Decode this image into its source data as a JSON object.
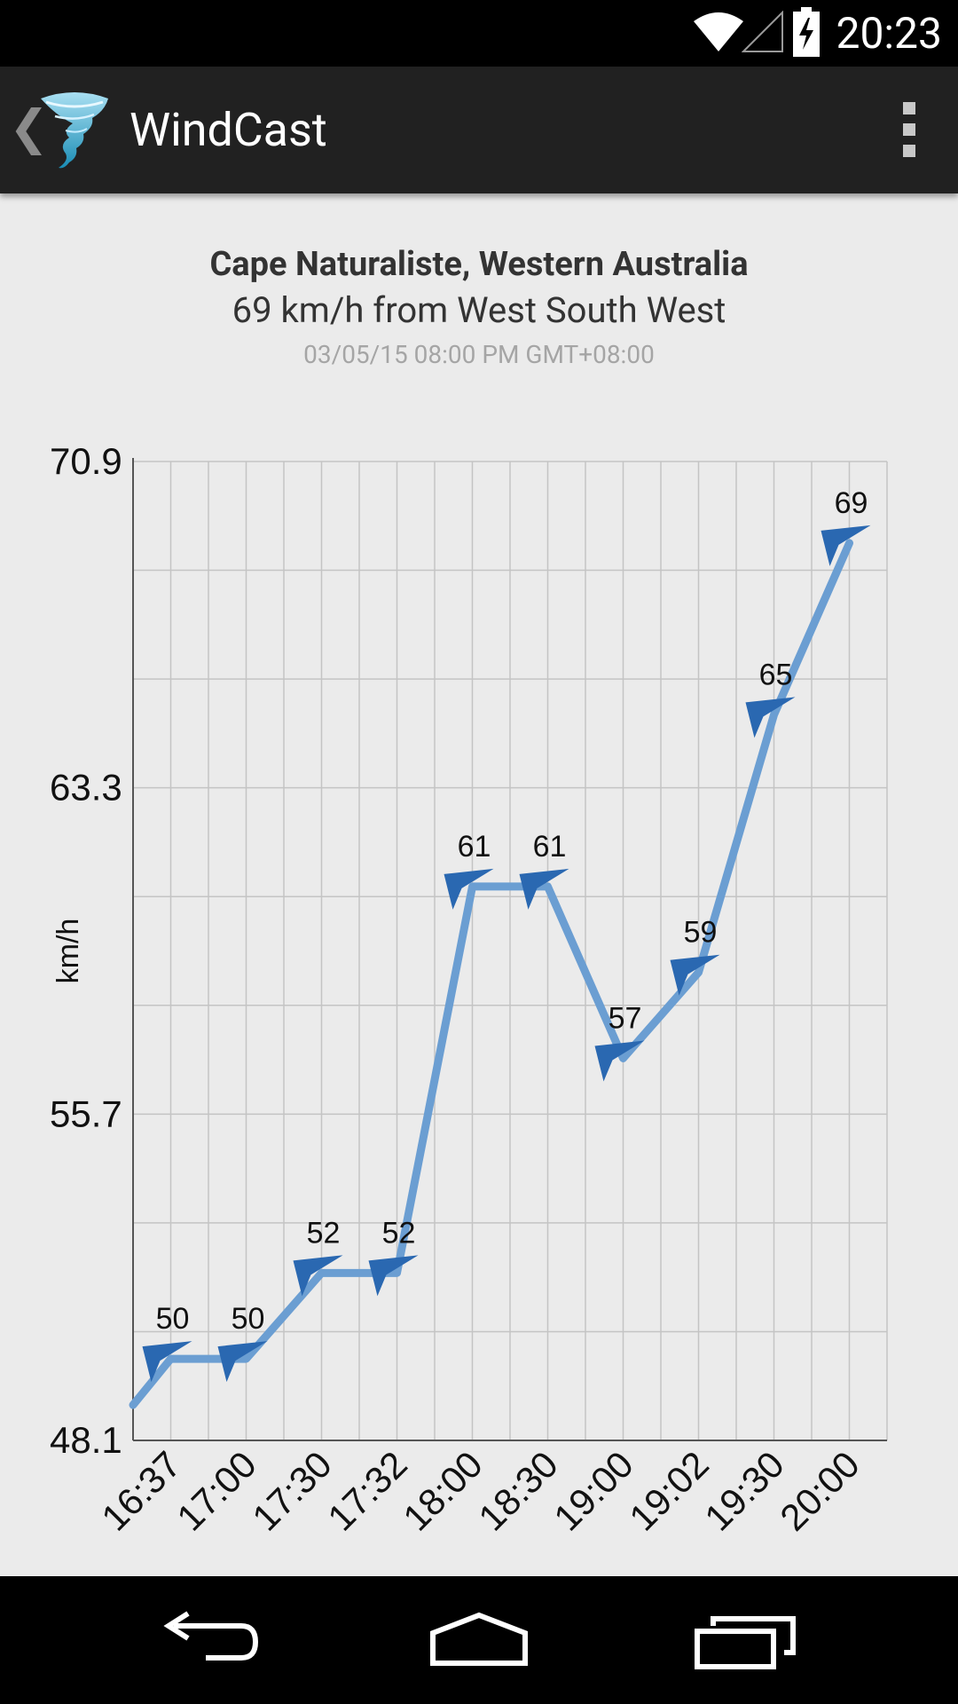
{
  "status_bar": {
    "time": "20:23",
    "icons": [
      "wifi-icon",
      "cell-signal-icon",
      "battery-charging-icon"
    ]
  },
  "action_bar": {
    "back_icon": "back-chevron-icon",
    "logo_icon": "tornado-logo-icon",
    "title": "WindCast",
    "overflow_icon": "overflow-menu-icon"
  },
  "header": {
    "location": "Cape Naturaliste, Western Australia",
    "speed_text": "69 km/h from West South West",
    "datetime": "03/05/15 08:00 PM GMT+08:00"
  },
  "chart_data": {
    "type": "line",
    "title": "",
    "xlabel": "",
    "ylabel": "km/h",
    "ylim": [
      48.1,
      70.9
    ],
    "y_ticks": [
      "48.1",
      "55.7",
      "63.3",
      "70.9"
    ],
    "categories": [
      "16:37",
      "17:00",
      "17:30",
      "17:32",
      "18:00",
      "18:30",
      "19:00",
      "19:02",
      "19:30",
      "20:00"
    ],
    "series": [
      {
        "values": [
          50,
          50,
          52,
          52,
          61,
          61,
          57,
          59,
          65,
          69
        ],
        "labels": [
          "50",
          "50",
          "52",
          "52",
          "61",
          "61",
          "57",
          "59",
          "65",
          "69"
        ]
      }
    ],
    "marker": "wind-direction-arrow",
    "grid": true,
    "line_color": "#6b9ed2",
    "marker_color": "#2a68b1"
  },
  "nav_bar": {
    "icons": [
      "back-nav-icon",
      "home-nav-icon",
      "recents-nav-icon"
    ]
  }
}
